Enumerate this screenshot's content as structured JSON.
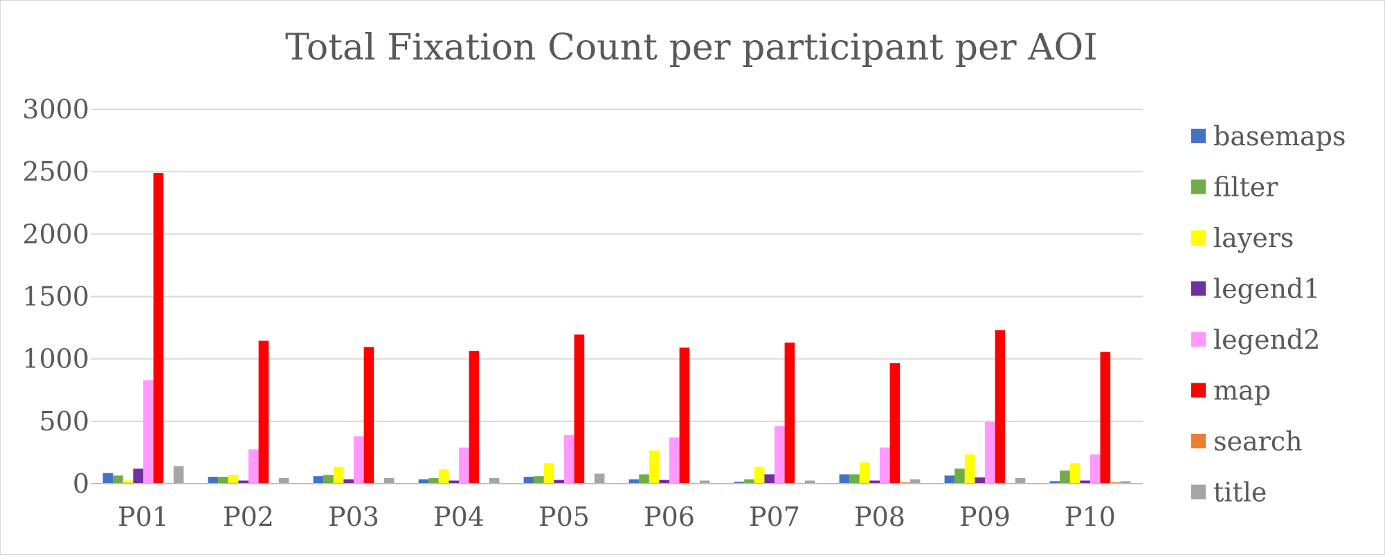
{
  "chart_data": {
    "type": "bar",
    "title": "Total Fixation Count per participant per AOI",
    "xlabel": "",
    "ylabel": "",
    "ylim": [
      0,
      3000
    ],
    "yticks": [
      "0",
      "500",
      "1000",
      "1500",
      "2000",
      "2500",
      "3000"
    ],
    "grid": true,
    "legend_position": "right",
    "categories": [
      "P01",
      "P02",
      "P03",
      "P04",
      "P05",
      "P06",
      "P07",
      "P08",
      "P09",
      "P10"
    ],
    "series": [
      {
        "name": "basemaps",
        "color": "#4472C4",
        "values": [
          85,
          55,
          60,
          35,
          55,
          35,
          15,
          75,
          65,
          20
        ]
      },
      {
        "name": "filter",
        "color": "#70AD47",
        "values": [
          65,
          55,
          70,
          45,
          60,
          75,
          35,
          75,
          120,
          105
        ]
      },
      {
        "name": "layers",
        "color": "#FFFF00",
        "values": [
          25,
          70,
          135,
          115,
          165,
          265,
          135,
          170,
          235,
          165
        ]
      },
      {
        "name": "legend1",
        "color": "#7030A0",
        "values": [
          120,
          25,
          35,
          25,
          30,
          30,
          75,
          25,
          50,
          25
        ]
      },
      {
        "name": "legend2",
        "color": "#FF99FF",
        "values": [
          830,
          275,
          380,
          290,
          390,
          370,
          460,
          290,
          495,
          235
        ]
      },
      {
        "name": "map",
        "color": "#FF0000",
        "values": [
          2490,
          1145,
          1095,
          1065,
          1195,
          1090,
          1130,
          965,
          1230,
          1055
        ]
      },
      {
        "name": "search",
        "color": "#ED7D31",
        "values": [
          0,
          0,
          5,
          0,
          0,
          0,
          0,
          10,
          5,
          10
        ]
      },
      {
        "name": "title",
        "color": "#A5A5A5",
        "values": [
          140,
          45,
          45,
          45,
          80,
          25,
          25,
          35,
          45,
          20
        ]
      }
    ]
  }
}
